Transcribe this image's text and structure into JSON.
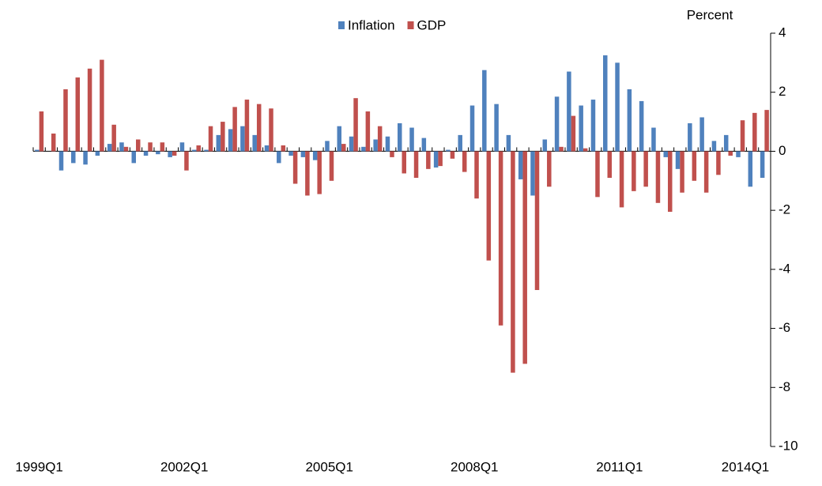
{
  "chart_data": {
    "type": "bar",
    "y_label": "Percent",
    "categories": [
      "1999Q1",
      null,
      null,
      null,
      null,
      null,
      null,
      null,
      null,
      null,
      null,
      null,
      "2002Q1",
      null,
      null,
      null,
      null,
      null,
      null,
      null,
      null,
      null,
      null,
      null,
      "2005Q1",
      null,
      null,
      null,
      null,
      null,
      null,
      null,
      null,
      null,
      null,
      null,
      "2008Q1",
      null,
      null,
      null,
      null,
      null,
      null,
      null,
      null,
      null,
      null,
      null,
      "2011Q1",
      null,
      null,
      null,
      null,
      null,
      null,
      null,
      null,
      null,
      null,
      null,
      "2014Q1"
    ],
    "series": [
      {
        "name": "Inflation",
        "color": "#4f81bd",
        "values": [
          0.05,
          0,
          -0.65,
          -0.4,
          -0.45,
          -0.15,
          0.25,
          0.3,
          -0.4,
          -0.15,
          -0.1,
          -0.2,
          0.3,
          0.05,
          0.05,
          0.55,
          0.75,
          0.85,
          0.55,
          0.2,
          -0.4,
          -0.15,
          -0.2,
          -0.3,
          0.35,
          0.85,
          0.5,
          0.15,
          0.4,
          0.5,
          0.95,
          0.8,
          0.45,
          -0.55,
          0.05,
          0.55,
          1.55,
          2.75,
          1.6,
          0.55,
          -0.95,
          -1.5,
          0.4,
          1.85,
          2.7,
          1.55,
          1.75,
          3.25,
          3.0,
          2.1,
          1.7,
          0.8,
          -0.2,
          -0.6,
          0.95,
          1.15,
          0.35,
          0.55,
          -0.2,
          -1.2,
          -0.9
        ]
      },
      {
        "name": "GDP",
        "color": "#c0504d",
        "values": [
          1.35,
          0.6,
          2.1,
          2.5,
          2.8,
          3.1,
          0.9,
          0.15,
          0.4,
          0.3,
          0.3,
          -0.15,
          -0.65,
          0.2,
          0.85,
          1.0,
          1.5,
          1.75,
          1.6,
          1.45,
          0.2,
          -1.1,
          -1.5,
          -1.45,
          -1.0,
          0.25,
          1.8,
          1.35,
          0.85,
          -0.2,
          -0.75,
          -0.9,
          -0.6,
          -0.5,
          -0.25,
          -0.7,
          -1.6,
          -3.7,
          -5.9,
          -7.5,
          -7.2,
          -4.7,
          -1.2,
          0.15,
          1.2,
          0.1,
          -1.55,
          -0.9,
          -1.9,
          -1.35,
          -1.2,
          -1.75,
          -2.05,
          -1.4,
          -1.0,
          -1.4,
          -0.8,
          -0.15,
          1.05,
          1.3,
          1.4
        ]
      }
    ],
    "ylim": [
      -10,
      4
    ],
    "yticks": [
      4,
      2,
      0,
      -2,
      -4,
      -6,
      -8,
      -10
    ],
    "legend": "top"
  }
}
